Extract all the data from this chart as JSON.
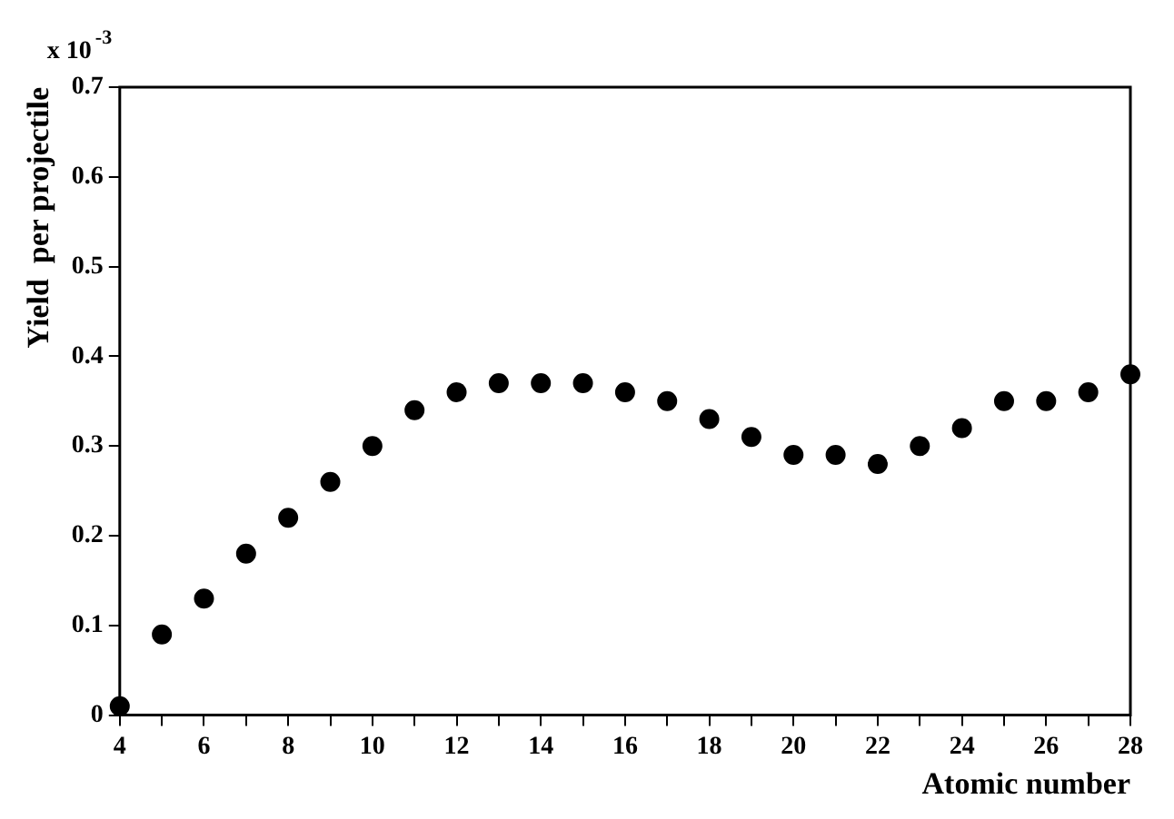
{
  "chart_data": {
    "type": "scatter",
    "xlabel": "Atomic number",
    "ylabel": "Yield  per projectile",
    "annotations": [
      "x 10$^{-3}$"
    ],
    "x": [
      4,
      5,
      6,
      7,
      8,
      9,
      10,
      11,
      12,
      13,
      14,
      15,
      16,
      17,
      18,
      19,
      20,
      21,
      22,
      23,
      24,
      25,
      26,
      27,
      28
    ],
    "series": [
      {
        "color": "#000000",
        "values": [
          0.01,
          0.09,
          0.13,
          0.18,
          0.22,
          0.26,
          0.3,
          0.34,
          0.36,
          0.37,
          0.37,
          0.37,
          0.36,
          0.35,
          0.33,
          0.31,
          0.29,
          0.29,
          0.28,
          0.3,
          0.32,
          0.35,
          0.35,
          0.36,
          0.38
        ]
      }
    ],
    "xlim": [
      4,
      28
    ],
    "xticks": [
      4,
      {
        "value": 5,
        "label": null
      },
      6,
      {
        "value": 7,
        "label": null
      },
      8,
      {
        "value": 9,
        "label": null
      },
      10,
      {
        "value": 11,
        "label": null
      },
      12,
      {
        "value": 13,
        "label": null
      },
      14,
      {
        "value": 15,
        "label": null
      },
      16,
      {
        "value": 17,
        "label": null
      },
      18,
      {
        "value": 19,
        "label": null
      },
      20,
      {
        "value": 21,
        "label": null
      },
      22,
      {
        "value": 23,
        "label": null
      },
      24,
      {
        "value": 25,
        "label": null
      },
      26,
      {
        "value": 27,
        "label": null
      },
      28
    ],
    "ylim": [
      0,
      0.7
    ],
    "yticks": [
      0,
      0.1,
      0.2,
      0.3,
      0.4,
      0.5,
      0.6,
      0.7
    ],
    "grid": false,
    "legend": false,
    "marker": "circle"
  }
}
